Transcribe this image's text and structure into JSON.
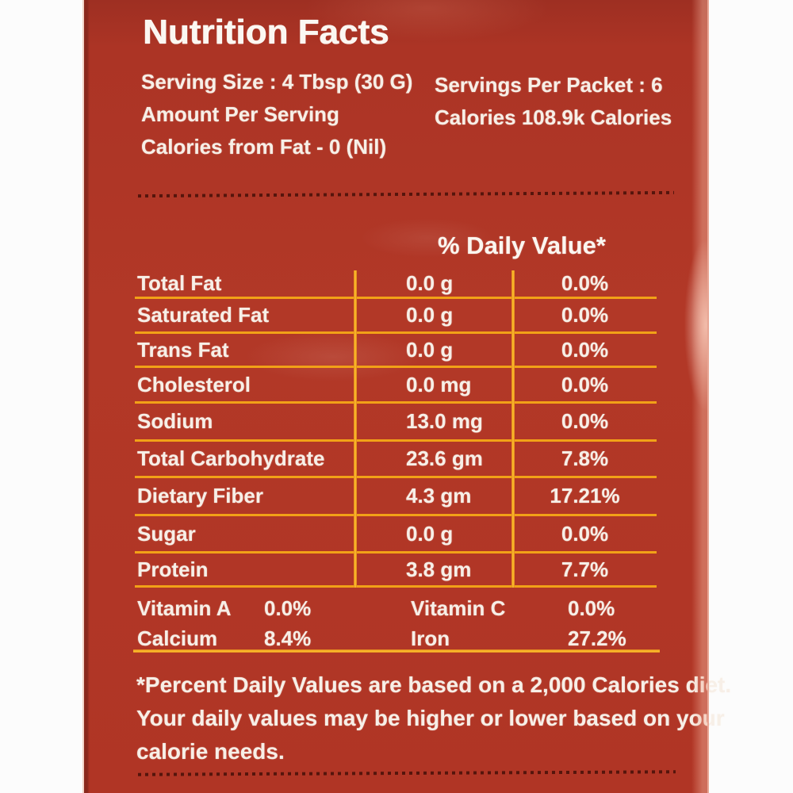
{
  "label": {
    "title": "Nutrition Facts",
    "serving_info": {
      "serving_size": "Serving Size : 4  Tbsp (30 G)",
      "amount_per_serving": "Amount Per Serving",
      "calories_from_fat": "Calories from Fat - 0 (Nil)",
      "servings_per_packet": "Servings Per Packet : 6",
      "calories_per_packet": "Calories 108.9k Calories"
    },
    "daily_value_header": "% Daily Value*",
    "nutrients": [
      {
        "name": "Total Fat",
        "amount": "0.0 g",
        "daily_value": "0.0%"
      },
      {
        "name": "Saturated Fat",
        "amount": "0.0 g",
        "daily_value": "0.0%"
      },
      {
        "name": "Trans Fat",
        "amount": "0.0 g",
        "daily_value": "0.0%"
      },
      {
        "name": "Cholesterol",
        "amount": "0.0 mg",
        "daily_value": "0.0%"
      },
      {
        "name": "Sodium",
        "amount": "13.0 mg",
        "daily_value": "0.0%"
      },
      {
        "name": "Total Carbohydrate",
        "amount": "23.6 gm",
        "daily_value": "7.8%"
      },
      {
        "name": "Dietary Fiber",
        "amount": "4.3 gm",
        "daily_value": "17.21%"
      },
      {
        "name": "Sugar",
        "amount": "0.0 g",
        "daily_value": "0.0%"
      },
      {
        "name": "Protein",
        "amount": "3.8 gm",
        "daily_value": "7.7%"
      }
    ],
    "micronutrients": [
      {
        "name": "Vitamin A",
        "value": "0.0%"
      },
      {
        "name": "Vitamin C",
        "value": "0.0%"
      },
      {
        "name": "Calcium",
        "value": "8.4%"
      },
      {
        "name": "Iron",
        "value": "27.2%"
      }
    ],
    "footnote_lines": [
      "*Percent Daily Values are based on a 2,000 Calories diet.",
      "Your daily values may be higher or lower based on your",
      "calorie needs."
    ],
    "colors": {
      "packet_red": "#b23827",
      "grid_line_orange": "#f2a117",
      "text_white": "#f7efe7",
      "dashed_line_dark": "#55150c"
    }
  }
}
